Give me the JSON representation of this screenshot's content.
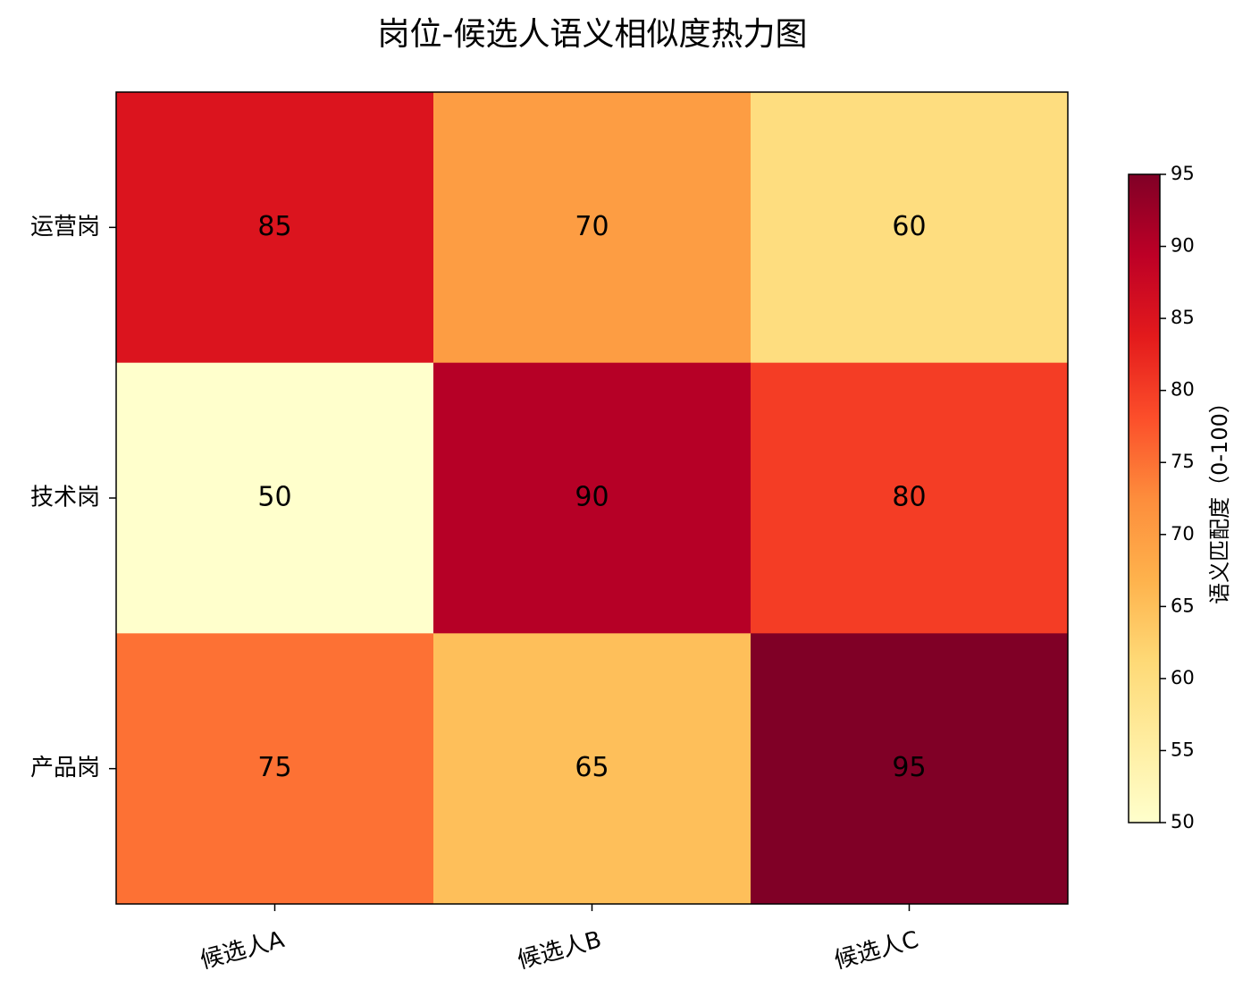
{
  "chart_data": {
    "type": "heatmap",
    "title": "岗位-候选人语义相似度热力图",
    "x_categories": [
      "候选人A",
      "候选人B",
      "候选人C"
    ],
    "y_categories": [
      "运营岗",
      "技术岗",
      "产品岗"
    ],
    "values": [
      [
        85,
        70,
        60
      ],
      [
        50,
        90,
        80
      ],
      [
        75,
        65,
        95
      ]
    ],
    "colormap": "YlOrRd",
    "colorscale": [
      "#ffffcc",
      "#ffeda0",
      "#fed976",
      "#feb24c",
      "#fd8d3c",
      "#fc4e2a",
      "#e31a1c",
      "#bd0026",
      "#800026"
    ],
    "colorbar_label": "语义匹配度（0-100）",
    "clim": [
      50,
      95
    ],
    "cticks": [
      50,
      55,
      60,
      65,
      70,
      75,
      80,
      85,
      90,
      95
    ]
  }
}
